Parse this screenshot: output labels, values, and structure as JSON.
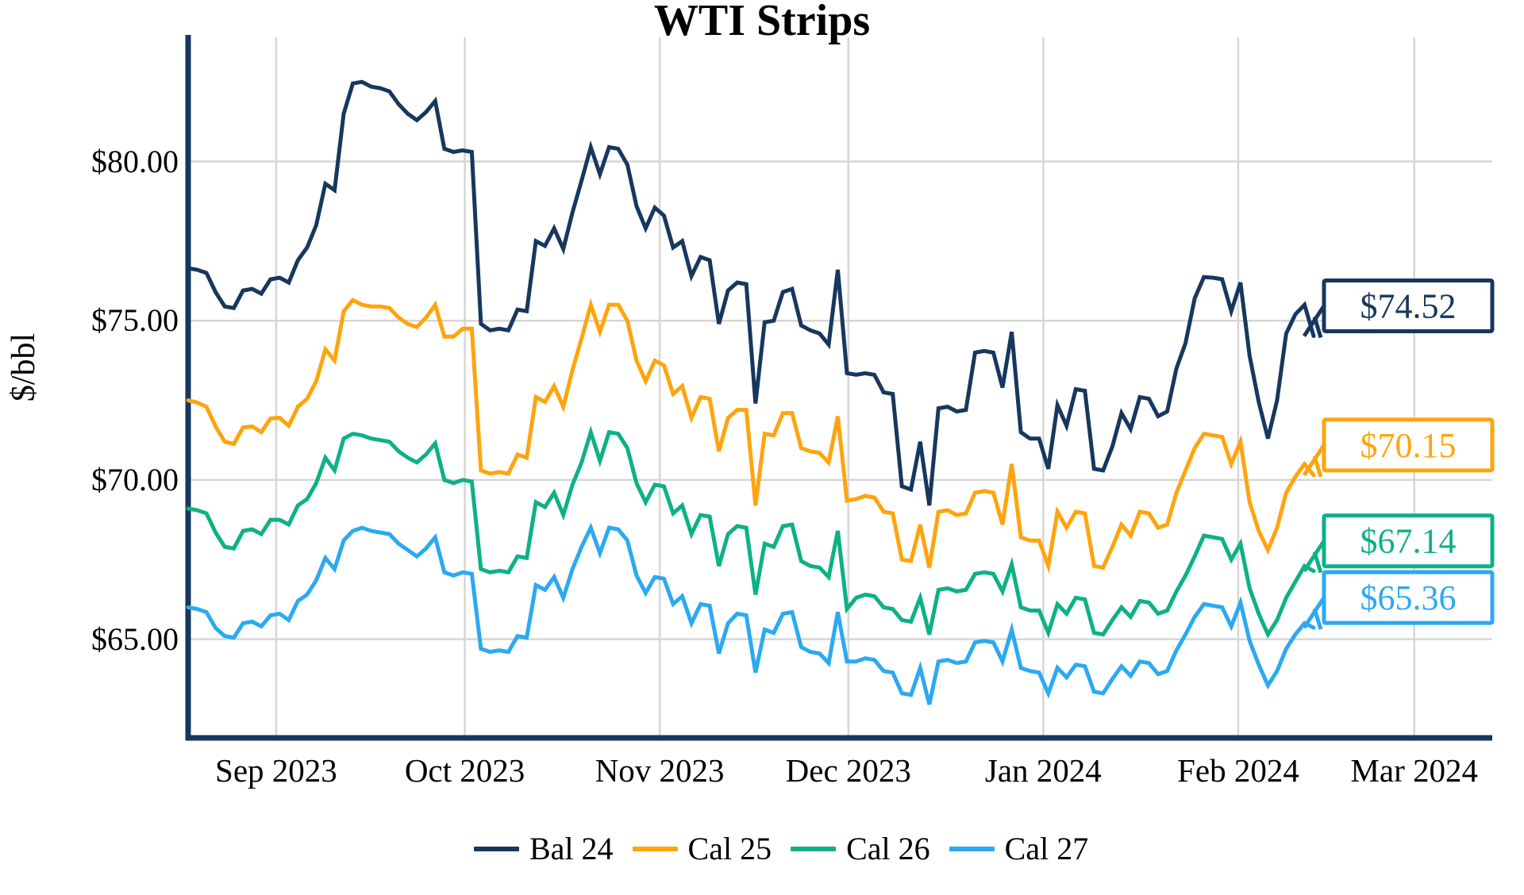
{
  "chart_data": {
    "type": "line",
    "title": "WTI Strips",
    "ylabel": "$/bbl",
    "grid": true,
    "legend_position": "bottom",
    "x_axis": {
      "tick_labels": [
        "Sep 2023",
        "Oct 2023",
        "Nov 2023",
        "Dec 2023",
        "Jan 2024",
        "Feb 2024",
        "Mar 2024"
      ],
      "tick_days": [
        14,
        44,
        75,
        105,
        136,
        167,
        195
      ],
      "data_span_days": 179
    },
    "y_axis": {
      "tick_labels": [
        "$65.00",
        "$70.00",
        "$75.00",
        "$80.00"
      ],
      "tick_values": [
        65,
        70,
        75,
        80
      ],
      "ylim": [
        61.95,
        83.9
      ]
    },
    "series": [
      {
        "name": "Bal 24",
        "color": "#17375e",
        "end_label": "$74.52",
        "end_value": 74.52,
        "values": [
          76.65,
          76.6,
          76.5,
          75.9,
          75.45,
          75.4,
          75.95,
          76.0,
          75.85,
          76.3,
          76.35,
          76.2,
          76.9,
          77.3,
          78.0,
          79.3,
          79.1,
          81.5,
          82.45,
          82.5,
          82.35,
          82.3,
          82.2,
          81.8,
          81.5,
          81.3,
          81.55,
          81.9,
          80.4,
          80.3,
          80.35,
          80.3,
          74.9,
          74.7,
          74.75,
          74.7,
          75.35,
          75.3,
          77.5,
          77.35,
          77.9,
          77.25,
          78.4,
          79.4,
          80.45,
          79.6,
          80.45,
          80.4,
          79.9,
          78.6,
          77.9,
          78.55,
          78.3,
          77.3,
          77.5,
          76.4,
          77.0,
          76.9,
          74.9,
          75.95,
          76.2,
          76.15,
          72.4,
          74.95,
          75.0,
          75.9,
          76.0,
          74.85,
          74.7,
          74.6,
          74.25,
          76.6,
          73.35,
          73.3,
          73.35,
          73.3,
          72.75,
          72.7,
          69.8,
          69.7,
          71.2,
          69.2,
          72.25,
          72.3,
          72.15,
          72.2,
          74.0,
          74.05,
          74.0,
          72.9,
          74.65,
          71.5,
          71.3,
          71.3,
          70.35,
          72.35,
          71.7,
          72.85,
          72.8,
          70.35,
          70.3,
          71.05,
          72.1,
          71.6,
          72.6,
          72.55,
          72.0,
          72.15,
          73.5,
          74.3,
          75.7,
          76.37,
          76.35,
          76.3,
          75.3,
          76.2,
          73.9,
          72.45,
          71.3,
          72.5,
          74.6,
          75.2,
          75.5,
          74.52
        ]
      },
      {
        "name": "Cal 25",
        "color": "#ffa40e",
        "end_label": "$70.15",
        "end_value": 70.15,
        "values": [
          72.5,
          72.43,
          72.3,
          71.68,
          71.2,
          71.13,
          71.65,
          71.68,
          71.5,
          71.93,
          71.95,
          71.7,
          72.3,
          72.55,
          73.1,
          74.1,
          73.75,
          75.3,
          75.65,
          75.5,
          75.45,
          75.45,
          75.4,
          75.1,
          74.9,
          74.8,
          75.1,
          75.5,
          74.5,
          74.5,
          74.75,
          74.75,
          70.3,
          70.2,
          70.25,
          70.2,
          70.8,
          70.7,
          72.6,
          72.45,
          72.95,
          72.3,
          73.45,
          74.45,
          75.5,
          74.65,
          75.5,
          75.5,
          75.0,
          73.75,
          73.1,
          73.75,
          73.6,
          72.7,
          72.95,
          71.95,
          72.6,
          72.55,
          70.9,
          71.95,
          72.2,
          72.2,
          69.2,
          71.45,
          71.4,
          72.1,
          72.1,
          71.0,
          70.9,
          70.85,
          70.55,
          72.0,
          69.35,
          69.4,
          69.5,
          69.45,
          69.0,
          68.95,
          67.5,
          67.45,
          68.6,
          67.25,
          69.0,
          69.05,
          68.9,
          68.95,
          69.6,
          69.65,
          69.6,
          68.6,
          70.5,
          68.2,
          68.1,
          68.1,
          67.3,
          69.0,
          68.5,
          69.0,
          68.95,
          67.3,
          67.25,
          67.9,
          68.6,
          68.25,
          69.0,
          68.95,
          68.5,
          68.6,
          69.6,
          70.3,
          71.0,
          71.45,
          71.4,
          71.35,
          70.5,
          71.2,
          69.3,
          68.4,
          67.8,
          68.5,
          69.6,
          70.1,
          70.5,
          70.15
        ]
      },
      {
        "name": "Cal 26",
        "color": "#0eb186",
        "end_label": "$67.14",
        "end_value": 67.14,
        "values": [
          69.1,
          69.05,
          68.95,
          68.35,
          67.9,
          67.85,
          68.4,
          68.45,
          68.3,
          68.75,
          68.75,
          68.6,
          69.2,
          69.4,
          69.9,
          70.7,
          70.3,
          71.3,
          71.45,
          71.4,
          71.3,
          71.25,
          71.2,
          70.9,
          70.7,
          70.55,
          70.8,
          71.15,
          70.0,
          69.9,
          70.0,
          69.95,
          67.2,
          67.1,
          67.15,
          67.1,
          67.6,
          67.55,
          69.3,
          69.15,
          69.6,
          68.9,
          69.85,
          70.55,
          71.5,
          70.6,
          71.5,
          71.45,
          71.0,
          69.9,
          69.3,
          69.85,
          69.8,
          68.95,
          69.2,
          68.3,
          68.9,
          68.85,
          67.3,
          68.3,
          68.55,
          68.5,
          66.4,
          68.0,
          67.9,
          68.55,
          68.6,
          67.45,
          67.3,
          67.25,
          66.95,
          68.4,
          65.95,
          66.3,
          66.4,
          66.35,
          66.0,
          65.95,
          65.6,
          65.55,
          66.3,
          65.15,
          66.55,
          66.6,
          66.5,
          66.55,
          67.05,
          67.1,
          67.05,
          66.5,
          67.35,
          66.0,
          65.9,
          65.9,
          65.2,
          66.1,
          65.8,
          66.3,
          66.25,
          65.2,
          65.15,
          65.6,
          66.0,
          65.7,
          66.2,
          66.15,
          65.8,
          65.9,
          66.5,
          67.0,
          67.6,
          68.25,
          68.2,
          68.15,
          67.5,
          68.0,
          66.6,
          65.8,
          65.15,
          65.6,
          66.3,
          66.8,
          67.3,
          67.14
        ]
      },
      {
        "name": "Cal 27",
        "color": "#2ca9f1",
        "end_label": "$65.36",
        "end_value": 65.36,
        "values": [
          66.0,
          65.95,
          65.85,
          65.35,
          65.1,
          65.05,
          65.5,
          65.55,
          65.4,
          65.75,
          65.8,
          65.6,
          66.2,
          66.4,
          66.85,
          67.55,
          67.2,
          68.1,
          68.4,
          68.5,
          68.4,
          68.35,
          68.3,
          68.0,
          67.8,
          67.6,
          67.85,
          68.2,
          67.1,
          67.0,
          67.1,
          67.05,
          64.7,
          64.6,
          64.65,
          64.6,
          65.1,
          65.05,
          66.7,
          66.55,
          66.95,
          66.3,
          67.2,
          67.9,
          68.5,
          67.7,
          68.5,
          68.45,
          68.1,
          67.0,
          66.45,
          66.95,
          66.9,
          66.1,
          66.35,
          65.5,
          66.1,
          66.05,
          64.55,
          65.5,
          65.8,
          65.75,
          63.95,
          65.3,
          65.2,
          65.8,
          65.85,
          64.75,
          64.6,
          64.55,
          64.25,
          65.85,
          64.3,
          64.3,
          64.4,
          64.35,
          64.0,
          63.95,
          63.3,
          63.25,
          64.1,
          62.95,
          64.3,
          64.35,
          64.25,
          64.3,
          64.9,
          64.95,
          64.9,
          64.3,
          65.3,
          64.1,
          64.0,
          63.95,
          63.3,
          64.1,
          63.8,
          64.2,
          64.15,
          63.35,
          63.3,
          63.75,
          64.15,
          63.85,
          64.3,
          64.25,
          63.9,
          64.0,
          64.65,
          65.15,
          65.7,
          66.1,
          66.05,
          66.0,
          65.4,
          66.15,
          64.95,
          64.2,
          63.55,
          64.0,
          64.7,
          65.15,
          65.5,
          65.36
        ]
      }
    ],
    "style": {
      "gridline_color": "#d6d6d6",
      "axis_color": "#17375e",
      "background": "#ffffff"
    }
  }
}
